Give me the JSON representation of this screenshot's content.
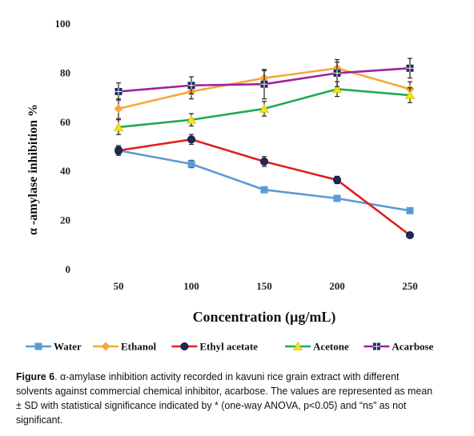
{
  "chart_data": {
    "type": "line",
    "ylabel": "α -amylase inhibition %",
    "xlabel": "Concentration (µg/mL)",
    "x": [
      50,
      100,
      150,
      200,
      250
    ],
    "x_tick_labels": [
      "50",
      "100",
      "150",
      "200",
      "250"
    ],
    "ylim": [
      0,
      100
    ],
    "y_ticks": [
      0,
      20,
      40,
      60,
      80,
      100
    ],
    "y_tick_labels": [
      "0",
      "20",
      "40",
      "60",
      "80",
      "100"
    ],
    "grid": false,
    "legend_position": "bottom",
    "series": [
      {
        "name": "Water",
        "color": "#5b9bd5",
        "marker": "square",
        "values": [
          48.5,
          43,
          32.5,
          29,
          24
        ],
        "errors": [
          1.5,
          1.5,
          1,
          1,
          0.8
        ]
      },
      {
        "name": "Ethanol",
        "color": "#f4a93b",
        "marker": "diamond",
        "values": [
          65.5,
          72.5,
          78,
          82,
          73.5
        ],
        "errors": [
          4,
          3,
          3,
          2.5,
          3
        ]
      },
      {
        "name": "Ethyl acetate",
        "color": "#e02020",
        "marker": "circle",
        "values": [
          48.5,
          53,
          44,
          36.5,
          14
        ],
        "errors": [
          2,
          2,
          2,
          1.5,
          0.5
        ]
      },
      {
        "name": "Acetone",
        "color": "#22aa55",
        "marker": "triangle",
        "values": [
          58,
          61,
          65.5,
          73.5,
          71
        ],
        "errors": [
          3,
          2.5,
          3,
          3,
          3
        ]
      },
      {
        "name": "Acarbose",
        "color": "#a020a0",
        "marker": "plus-square",
        "values": [
          72.5,
          75,
          75.5,
          80,
          82
        ],
        "errors": [
          3.5,
          3.5,
          6,
          5.5,
          4
        ]
      }
    ]
  },
  "caption": {
    "label": "Figure 6",
    "text": ". α-amylase inhibition activity recorded in kavuni rice grain extract with different solvents against commercial chemical inhibitor, acarbose. The values are represented as mean ± SD with statistical significance indicated by * (one-way ANOVA, p<0.05) and “ns” as not significant."
  }
}
